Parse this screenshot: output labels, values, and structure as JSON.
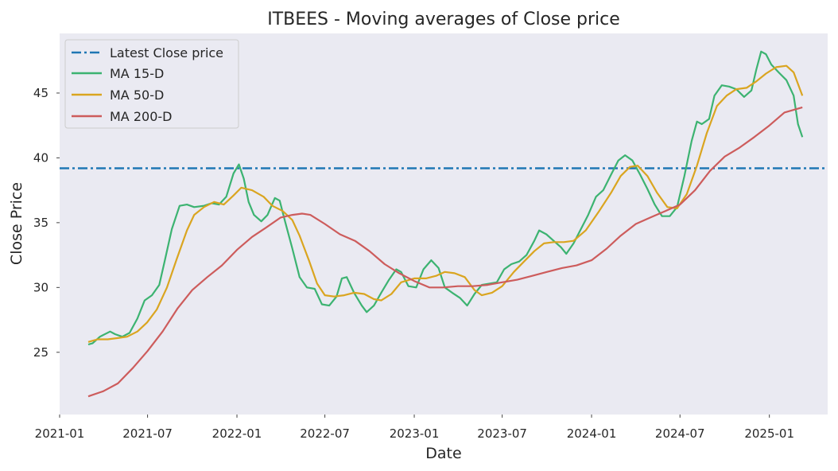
{
  "chart_data": {
    "type": "line",
    "title": "ITBEES - Moving averages of Close price",
    "xlabel": "Date",
    "ylabel": "Close Price",
    "xlim": [
      "2021-01",
      "2025-05"
    ],
    "ylim": [
      20.2,
      49.6
    ],
    "x_ticks": [
      "2021-01",
      "2021-07",
      "2022-01",
      "2022-07",
      "2023-01",
      "2023-07",
      "2024-01",
      "2024-07",
      "2025-01"
    ],
    "y_ticks": [
      25,
      30,
      35,
      40,
      45
    ],
    "grid": false,
    "legend_position": "top-left",
    "hline": {
      "name": "Latest Close price",
      "value": 39.2,
      "color": "#1f77b4",
      "style": "dash-dot"
    },
    "series": [
      {
        "name": "MA 15-D",
        "color": "#3cb371",
        "points": [
          [
            "2021-03-01",
            25.6
          ],
          [
            "2021-03-10",
            25.7
          ],
          [
            "2021-03-25",
            26.2
          ],
          [
            "2021-04-15",
            26.6
          ],
          [
            "2021-04-25",
            26.4
          ],
          [
            "2021-05-10",
            26.2
          ],
          [
            "2021-05-25",
            26.5
          ],
          [
            "2021-06-10",
            27.6
          ],
          [
            "2021-06-25",
            29.0
          ],
          [
            "2021-07-10",
            29.4
          ],
          [
            "2021-07-25",
            30.2
          ],
          [
            "2021-08-05",
            32.0
          ],
          [
            "2021-08-20",
            34.5
          ],
          [
            "2021-09-05",
            36.3
          ],
          [
            "2021-09-20",
            36.4
          ],
          [
            "2021-10-05",
            36.2
          ],
          [
            "2021-10-25",
            36.3
          ],
          [
            "2021-11-10",
            36.5
          ],
          [
            "2021-11-25",
            36.4
          ],
          [
            "2021-12-10",
            37.0
          ],
          [
            "2021-12-25",
            38.8
          ],
          [
            "2022-01-05",
            39.5
          ],
          [
            "2022-01-15",
            38.4
          ],
          [
            "2022-01-25",
            36.6
          ],
          [
            "2022-02-05",
            35.6
          ],
          [
            "2022-02-20",
            35.1
          ],
          [
            "2022-03-05",
            35.6
          ],
          [
            "2022-03-20",
            36.9
          ],
          [
            "2022-03-30",
            36.7
          ],
          [
            "2022-04-10",
            35.1
          ],
          [
            "2022-04-25",
            33.0
          ],
          [
            "2022-05-10",
            30.8
          ],
          [
            "2022-05-25",
            30.0
          ],
          [
            "2022-06-10",
            29.9
          ],
          [
            "2022-06-25",
            28.7
          ],
          [
            "2022-07-10",
            28.6
          ],
          [
            "2022-07-25",
            29.3
          ],
          [
            "2022-08-05",
            30.7
          ],
          [
            "2022-08-15",
            30.8
          ],
          [
            "2022-08-30",
            29.6
          ],
          [
            "2022-09-15",
            28.6
          ],
          [
            "2022-09-25",
            28.1
          ],
          [
            "2022-10-10",
            28.6
          ],
          [
            "2022-10-25",
            29.6
          ],
          [
            "2022-11-10",
            30.6
          ],
          [
            "2022-11-25",
            31.4
          ],
          [
            "2022-12-05",
            31.2
          ],
          [
            "2022-12-20",
            30.1
          ],
          [
            "2023-01-05",
            30.0
          ],
          [
            "2023-01-20",
            31.4
          ],
          [
            "2023-02-05",
            32.1
          ],
          [
            "2023-02-20",
            31.5
          ],
          [
            "2023-03-05",
            30.0
          ],
          [
            "2023-03-20",
            29.6
          ],
          [
            "2023-04-05",
            29.2
          ],
          [
            "2023-04-20",
            28.6
          ],
          [
            "2023-05-05",
            29.5
          ],
          [
            "2023-05-20",
            30.2
          ],
          [
            "2023-06-05",
            30.3
          ],
          [
            "2023-06-20",
            30.4
          ],
          [
            "2023-07-05",
            31.4
          ],
          [
            "2023-07-20",
            31.8
          ],
          [
            "2023-08-05",
            32.0
          ],
          [
            "2023-08-20",
            32.5
          ],
          [
            "2023-09-05",
            33.6
          ],
          [
            "2023-09-15",
            34.4
          ],
          [
            "2023-09-30",
            34.1
          ],
          [
            "2023-10-15",
            33.6
          ],
          [
            "2023-10-30",
            33.1
          ],
          [
            "2023-11-10",
            32.6
          ],
          [
            "2023-11-25",
            33.4
          ],
          [
            "2023-12-10",
            34.5
          ],
          [
            "2023-12-25",
            35.6
          ],
          [
            "2024-01-10",
            37.0
          ],
          [
            "2024-01-25",
            37.5
          ],
          [
            "2024-02-10",
            38.7
          ],
          [
            "2024-02-25",
            39.8
          ],
          [
            "2024-03-10",
            40.2
          ],
          [
            "2024-03-25",
            39.8
          ],
          [
            "2024-04-10",
            38.7
          ],
          [
            "2024-04-25",
            37.6
          ],
          [
            "2024-05-10",
            36.4
          ],
          [
            "2024-05-25",
            35.5
          ],
          [
            "2024-06-10",
            35.5
          ],
          [
            "2024-06-25",
            36.2
          ],
          [
            "2024-07-10",
            38.6
          ],
          [
            "2024-07-25",
            41.3
          ],
          [
            "2024-08-05",
            42.8
          ],
          [
            "2024-08-15",
            42.6
          ],
          [
            "2024-08-30",
            43.0
          ],
          [
            "2024-09-10",
            44.8
          ],
          [
            "2024-09-25",
            45.6
          ],
          [
            "2024-10-10",
            45.5
          ],
          [
            "2024-10-25",
            45.3
          ],
          [
            "2024-11-10",
            44.7
          ],
          [
            "2024-11-25",
            45.2
          ],
          [
            "2024-12-05",
            46.8
          ],
          [
            "2024-12-15",
            48.2
          ],
          [
            "2024-12-25",
            48.0
          ],
          [
            "2025-01-05",
            47.2
          ],
          [
            "2025-01-20",
            46.6
          ],
          [
            "2025-02-05",
            46.0
          ],
          [
            "2025-02-20",
            44.8
          ],
          [
            "2025-03-01",
            42.6
          ],
          [
            "2025-03-10",
            41.6
          ]
        ]
      },
      {
        "name": "MA 50-D",
        "color": "#daa520",
        "points": [
          [
            "2021-03-01",
            25.8
          ],
          [
            "2021-03-20",
            26.0
          ],
          [
            "2021-04-10",
            26.0
          ],
          [
            "2021-05-01",
            26.1
          ],
          [
            "2021-05-20",
            26.2
          ],
          [
            "2021-06-10",
            26.6
          ],
          [
            "2021-06-30",
            27.3
          ],
          [
            "2021-07-20",
            28.3
          ],
          [
            "2021-08-10",
            30.0
          ],
          [
            "2021-08-30",
            32.2
          ],
          [
            "2021-09-20",
            34.4
          ],
          [
            "2021-10-05",
            35.6
          ],
          [
            "2021-10-25",
            36.2
          ],
          [
            "2021-11-15",
            36.6
          ],
          [
            "2021-12-05",
            36.4
          ],
          [
            "2021-12-25",
            37.1
          ],
          [
            "2022-01-10",
            37.7
          ],
          [
            "2022-02-01",
            37.5
          ],
          [
            "2022-02-25",
            37.0
          ],
          [
            "2022-03-15",
            36.3
          ],
          [
            "2022-04-05",
            35.9
          ],
          [
            "2022-04-25",
            35.2
          ],
          [
            "2022-05-10",
            34.0
          ],
          [
            "2022-05-30",
            32.0
          ],
          [
            "2022-06-15",
            30.3
          ],
          [
            "2022-07-01",
            29.4
          ],
          [
            "2022-07-20",
            29.3
          ],
          [
            "2022-08-10",
            29.4
          ],
          [
            "2022-08-30",
            29.6
          ],
          [
            "2022-09-20",
            29.5
          ],
          [
            "2022-10-10",
            29.1
          ],
          [
            "2022-10-25",
            29.0
          ],
          [
            "2022-11-15",
            29.5
          ],
          [
            "2022-12-05",
            30.4
          ],
          [
            "2023-01-01",
            30.7
          ],
          [
            "2023-01-25",
            30.7
          ],
          [
            "2023-02-15",
            30.9
          ],
          [
            "2023-03-05",
            31.2
          ],
          [
            "2023-03-25",
            31.1
          ],
          [
            "2023-04-15",
            30.8
          ],
          [
            "2023-05-05",
            29.8
          ],
          [
            "2023-05-20",
            29.4
          ],
          [
            "2023-06-10",
            29.6
          ],
          [
            "2023-07-01",
            30.1
          ],
          [
            "2023-07-25",
            31.2
          ],
          [
            "2023-08-15",
            32.0
          ],
          [
            "2023-09-05",
            32.8
          ],
          [
            "2023-09-25",
            33.4
          ],
          [
            "2023-10-15",
            33.5
          ],
          [
            "2023-11-05",
            33.5
          ],
          [
            "2023-11-25",
            33.6
          ],
          [
            "2023-12-20",
            34.4
          ],
          [
            "2024-01-15",
            35.8
          ],
          [
            "2024-02-10",
            37.3
          ],
          [
            "2024-03-01",
            38.6
          ],
          [
            "2024-03-20",
            39.3
          ],
          [
            "2024-04-05",
            39.4
          ],
          [
            "2024-04-25",
            38.6
          ],
          [
            "2024-05-15",
            37.3
          ],
          [
            "2024-06-05",
            36.2
          ],
          [
            "2024-06-25",
            36.1
          ],
          [
            "2024-07-15",
            37.2
          ],
          [
            "2024-08-05",
            39.4
          ],
          [
            "2024-08-25",
            41.9
          ],
          [
            "2024-09-15",
            44.0
          ],
          [
            "2024-10-05",
            44.8
          ],
          [
            "2024-10-25",
            45.3
          ],
          [
            "2024-11-15",
            45.4
          ],
          [
            "2024-12-05",
            45.9
          ],
          [
            "2024-12-25",
            46.5
          ],
          [
            "2025-01-15",
            47.0
          ],
          [
            "2025-02-05",
            47.1
          ],
          [
            "2025-02-20",
            46.6
          ],
          [
            "2025-03-10",
            44.8
          ]
        ]
      },
      {
        "name": "MA 200-D",
        "color": "#cd5c5c",
        "points": [
          [
            "2021-03-01",
            21.6
          ],
          [
            "2021-04-01",
            22.0
          ],
          [
            "2021-05-01",
            22.6
          ],
          [
            "2021-06-01",
            23.8
          ],
          [
            "2021-07-01",
            25.1
          ],
          [
            "2021-08-01",
            26.6
          ],
          [
            "2021-09-01",
            28.4
          ],
          [
            "2021-10-01",
            29.8
          ],
          [
            "2021-11-01",
            30.8
          ],
          [
            "2021-12-01",
            31.7
          ],
          [
            "2022-01-01",
            32.9
          ],
          [
            "2022-02-01",
            33.9
          ],
          [
            "2022-03-01",
            34.6
          ],
          [
            "2022-04-01",
            35.4
          ],
          [
            "2022-04-25",
            35.6
          ],
          [
            "2022-05-15",
            35.7
          ],
          [
            "2022-06-01",
            35.6
          ],
          [
            "2022-07-01",
            34.9
          ],
          [
            "2022-08-01",
            34.1
          ],
          [
            "2022-09-01",
            33.6
          ],
          [
            "2022-10-01",
            32.8
          ],
          [
            "2022-11-01",
            31.8
          ],
          [
            "2022-12-01",
            31.1
          ],
          [
            "2023-01-01",
            30.5
          ],
          [
            "2023-02-01",
            30.0
          ],
          [
            "2023-03-01",
            30.0
          ],
          [
            "2023-04-01",
            30.1
          ],
          [
            "2023-05-01",
            30.1
          ],
          [
            "2023-06-01",
            30.2
          ],
          [
            "2023-07-01",
            30.4
          ],
          [
            "2023-08-01",
            30.6
          ],
          [
            "2023-09-01",
            30.9
          ],
          [
            "2023-10-01",
            31.2
          ],
          [
            "2023-11-01",
            31.5
          ],
          [
            "2023-12-01",
            31.7
          ],
          [
            "2024-01-01",
            32.1
          ],
          [
            "2024-02-01",
            33.0
          ],
          [
            "2024-03-01",
            34.0
          ],
          [
            "2024-04-01",
            34.9
          ],
          [
            "2024-05-01",
            35.4
          ],
          [
            "2024-06-01",
            35.9
          ],
          [
            "2024-07-01",
            36.4
          ],
          [
            "2024-08-01",
            37.5
          ],
          [
            "2024-09-01",
            39.0
          ],
          [
            "2024-10-01",
            40.1
          ],
          [
            "2024-11-01",
            40.8
          ],
          [
            "2024-12-01",
            41.6
          ],
          [
            "2025-01-01",
            42.5
          ],
          [
            "2025-02-01",
            43.5
          ],
          [
            "2025-03-10",
            43.9
          ]
        ]
      }
    ]
  }
}
